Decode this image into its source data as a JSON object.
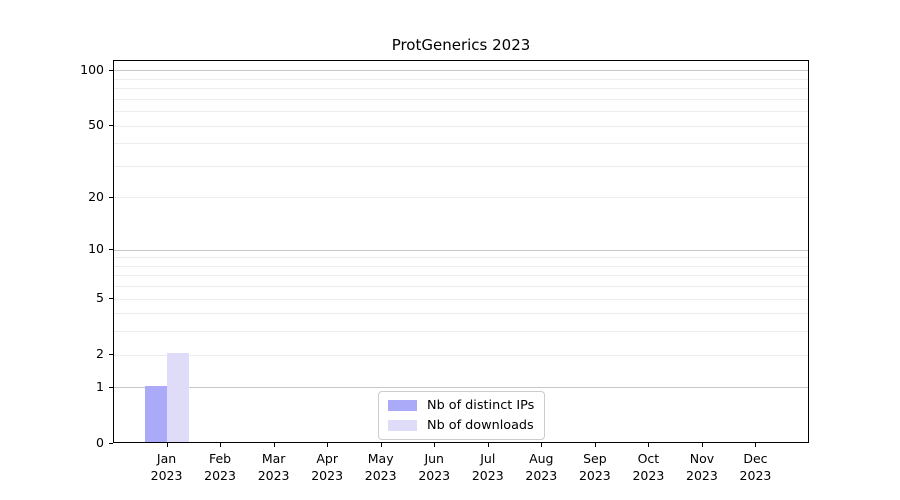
{
  "chart_data": {
    "type": "bar",
    "title": "ProtGenerics 2023",
    "x_tick_months": [
      "Jan",
      "Feb",
      "Mar",
      "Apr",
      "May",
      "Jun",
      "Jul",
      "Aug",
      "Sep",
      "Oct",
      "Nov",
      "Dec"
    ],
    "x_tick_year": "2023",
    "y_scale": "log1p",
    "y_ticks": [
      0,
      1,
      2,
      5,
      10,
      20,
      50,
      100
    ],
    "y_axis_top_value": 113,
    "gridlines_major": [
      1,
      10,
      100
    ],
    "gridlines_minor": [
      2,
      3,
      4,
      5,
      6,
      7,
      8,
      9,
      20,
      30,
      40,
      50,
      60,
      70,
      80,
      90
    ],
    "series": [
      {
        "name": "Nb of distinct IPs",
        "color": "#aaaaf8",
        "values": [
          1,
          0,
          0,
          0,
          0,
          0,
          0,
          0,
          0,
          0,
          0,
          0
        ]
      },
      {
        "name": "Nb of downloads",
        "color": "#dedcf8",
        "values": [
          2,
          0,
          0,
          0,
          0,
          0,
          0,
          0,
          0,
          0,
          0,
          0
        ]
      }
    ],
    "legend_position": "bottom-center",
    "grid": "horizontal-only",
    "colors": {
      "axis": "#000000",
      "grid_major": "#c8c8c8",
      "grid_minor": "#ececec",
      "legend_border": "#cccccc",
      "background": "#ffffff",
      "text": "#000000"
    }
  }
}
